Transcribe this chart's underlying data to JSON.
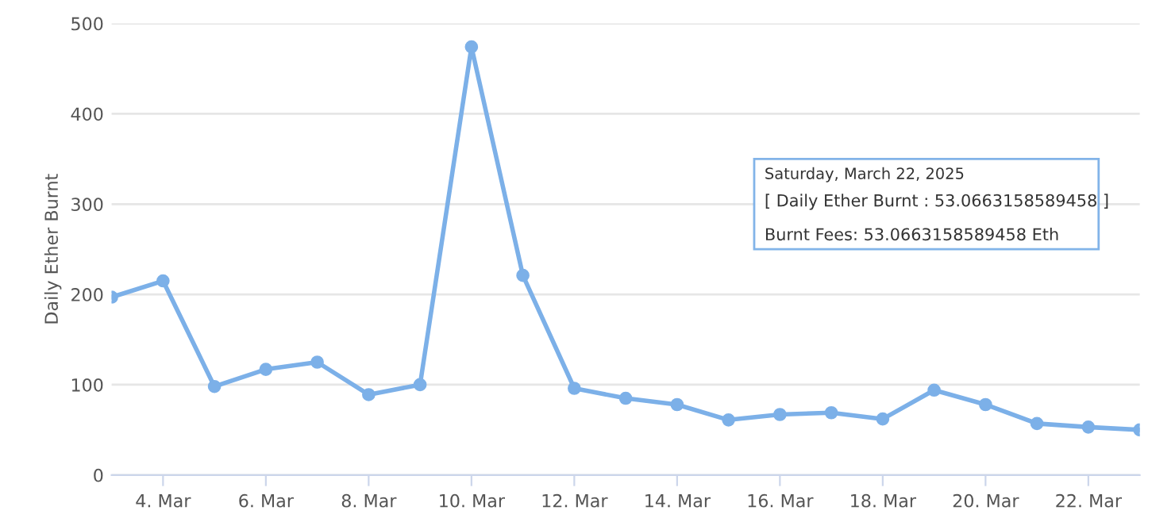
{
  "chart_data": {
    "type": "line",
    "ylabel": "Daily Ether Burnt",
    "x": [
      "2025-03-03",
      "2025-03-04",
      "2025-03-05",
      "2025-03-06",
      "2025-03-07",
      "2025-03-08",
      "2025-03-09",
      "2025-03-10",
      "2025-03-11",
      "2025-03-12",
      "2025-03-13",
      "2025-03-14",
      "2025-03-15",
      "2025-03-16",
      "2025-03-17",
      "2025-03-18",
      "2025-03-19",
      "2025-03-20",
      "2025-03-21",
      "2025-03-22",
      "2025-03-23"
    ],
    "series": [
      {
        "color": "#7cb0e8",
        "values": [
          197,
          215,
          98,
          117,
          125,
          89,
          100,
          474,
          221,
          96,
          85,
          78,
          61,
          67,
          69,
          62,
          94,
          78,
          57,
          53.0663158589458,
          50
        ]
      }
    ],
    "xlim": [
      "2025-03-03",
      "2025-03-23"
    ],
    "xticks": [
      {
        "value": "2025-03-04",
        "label": "4. Mar"
      },
      {
        "value": "2025-03-06",
        "label": "6. Mar"
      },
      {
        "value": "2025-03-08",
        "label": "8. Mar"
      },
      {
        "value": "2025-03-10",
        "label": "10. Mar"
      },
      {
        "value": "2025-03-12",
        "label": "12. Mar"
      },
      {
        "value": "2025-03-14",
        "label": "14. Mar"
      },
      {
        "value": "2025-03-16",
        "label": "16. Mar"
      },
      {
        "value": "2025-03-18",
        "label": "18. Mar"
      },
      {
        "value": "2025-03-20",
        "label": "20. Mar"
      },
      {
        "value": "2025-03-22",
        "label": "22. Mar"
      }
    ],
    "ylim": [
      0,
      500
    ],
    "yticks": [
      0,
      100,
      200,
      300,
      400,
      500
    ],
    "grid": "y",
    "legend": false,
    "marker": "circle",
    "line_style": "solid",
    "annotations": [
      "Saturday, March 22, 2025",
      "[ Daily Ether Burnt : 53.0663158589458 ]",
      "Burnt Fees: 53.0663158589458 Eth"
    ]
  }
}
